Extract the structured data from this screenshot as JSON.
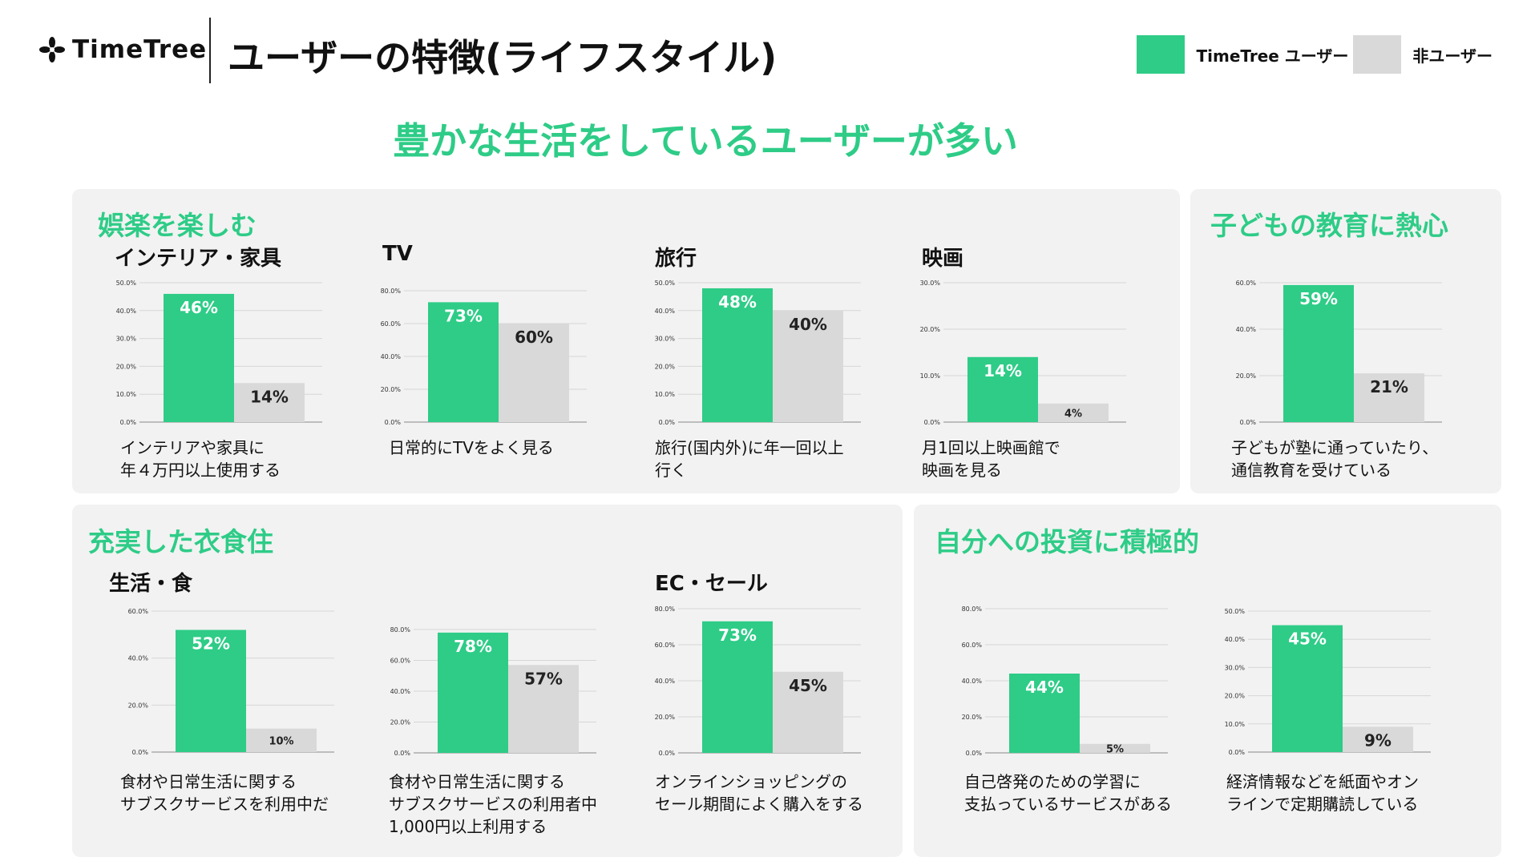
{
  "header": {
    "logo_text": "TimeTree",
    "title": "ユーザーの特徴(ライフスタイル)",
    "headline": "豊かな生活をしているユーザーが多い"
  },
  "legend": {
    "user_label": "TimeTree ユーザー",
    "nonuser_label": "非ユーザー"
  },
  "colors": {
    "accent": "#2ecc87",
    "user": "#2ecc87",
    "nonuser": "#d9d9d9"
  },
  "icons": {
    "logo": "timetree-logo-icon"
  },
  "panels": {
    "entertainment": {
      "title": "娯楽を楽しむ"
    },
    "education": {
      "title": "子どもの教育に熱心"
    },
    "living": {
      "title": "充実した衣食住"
    },
    "investment": {
      "title": "自分への投資に積極的"
    }
  },
  "chart_data": [
    {
      "type": "bar",
      "title": "インテリア・家具",
      "categories": [
        "TimeTree ユーザー",
        "非ユーザー"
      ],
      "values": [
        46,
        14
      ],
      "value_labels": [
        "46%",
        "14%"
      ],
      "ylim": [
        0,
        50
      ],
      "yticks": [
        "0.0%",
        "10.0%",
        "20.0%",
        "30.0%",
        "40.0%",
        "50.0%"
      ],
      "caption": [
        "インテリアや家具に",
        "年４万円以上使用する"
      ]
    },
    {
      "type": "bar",
      "title": "TV",
      "categories": [
        "TimeTree ユーザー",
        "非ユーザー"
      ],
      "values": [
        73,
        60
      ],
      "value_labels": [
        "73%",
        "60%"
      ],
      "ylim": [
        0,
        80
      ],
      "yticks": [
        "0.0%",
        "20.0%",
        "40.0%",
        "60.0%",
        "80.0%"
      ],
      "caption": [
        "日常的にTVをよく見る"
      ]
    },
    {
      "type": "bar",
      "title": "旅行",
      "categories": [
        "TimeTree ユーザー",
        "非ユーザー"
      ],
      "values": [
        48,
        40
      ],
      "value_labels": [
        "48%",
        "40%"
      ],
      "ylim": [
        0,
        50
      ],
      "yticks": [
        "0.0%",
        "10.0%",
        "20.0%",
        "30.0%",
        "40.0%",
        "50.0%"
      ],
      "caption": [
        "旅行(国内外)に年一回以上",
        "行く"
      ]
    },
    {
      "type": "bar",
      "title": "映画",
      "categories": [
        "TimeTree ユーザー",
        "非ユーザー"
      ],
      "values": [
        14,
        4
      ],
      "value_labels": [
        "14%",
        "4%"
      ],
      "ylim": [
        0,
        30
      ],
      "yticks": [
        "0.0%",
        "10.0%",
        "20.0%",
        "30.0%"
      ],
      "caption": [
        "月1回以上映画館で",
        "映画を見る"
      ]
    },
    {
      "type": "bar",
      "title": "",
      "categories": [
        "TimeTree ユーザー",
        "非ユーザー"
      ],
      "values": [
        59,
        21
      ],
      "value_labels": [
        "59%",
        "21%"
      ],
      "ylim": [
        0,
        60
      ],
      "yticks": [
        "0.0%",
        "20.0%",
        "40.0%",
        "60.0%"
      ],
      "caption": [
        "子どもが塾に通っていたり、",
        "通信教育を受けている"
      ]
    },
    {
      "type": "bar",
      "title": "生活・食",
      "categories": [
        "TimeTree ユーザー",
        "非ユーザー"
      ],
      "values": [
        52,
        10
      ],
      "value_labels": [
        "52%",
        "10%"
      ],
      "ylim": [
        0,
        60
      ],
      "yticks": [
        "0.0%",
        "20.0%",
        "40.0%",
        "60.0%"
      ],
      "caption": [
        "食材や日常生活に関する",
        "サブスクサービスを利用中だ"
      ]
    },
    {
      "type": "bar",
      "title": "",
      "categories": [
        "TimeTree ユーザー",
        "非ユーザー"
      ],
      "values": [
        78,
        57
      ],
      "value_labels": [
        "78%",
        "57%"
      ],
      "ylim": [
        0,
        80
      ],
      "yticks": [
        "0.0%",
        "20.0%",
        "40.0%",
        "60.0%",
        "80.0%"
      ],
      "caption": [
        "食材や日常生活に関する",
        "サブスクサービスの利用者中",
        "1,000円以上利用する"
      ]
    },
    {
      "type": "bar",
      "title": "EC・セール",
      "categories": [
        "TimeTree ユーザー",
        "非ユーザー"
      ],
      "values": [
        73,
        45
      ],
      "value_labels": [
        "73%",
        "45%"
      ],
      "ylim": [
        0,
        80
      ],
      "yticks": [
        "0.0%",
        "20.0%",
        "40.0%",
        "60.0%",
        "80.0%"
      ],
      "caption": [
        "オンラインショッピングの",
        "セール期間によく購入をする"
      ]
    },
    {
      "type": "bar",
      "title": "",
      "categories": [
        "TimeTree ユーザー",
        "非ユーザー"
      ],
      "values": [
        44,
        5
      ],
      "value_labels": [
        "44%",
        "5%"
      ],
      "ylim": [
        0,
        80
      ],
      "yticks": [
        "0.0%",
        "20.0%",
        "40.0%",
        "60.0%",
        "80.0%"
      ],
      "caption": [
        "自己啓発のための学習に",
        "支払っているサービスがある"
      ]
    },
    {
      "type": "bar",
      "title": "",
      "categories": [
        "TimeTree ユーザー",
        "非ユーザー"
      ],
      "values": [
        45,
        9
      ],
      "value_labels": [
        "45%",
        "9%"
      ],
      "ylim": [
        0,
        50
      ],
      "yticks": [
        "0.0%",
        "10.0%",
        "20.0%",
        "30.0%",
        "40.0%",
        "50.0%"
      ],
      "caption": [
        "経済情報などを紙面やオン",
        "ラインで定期購読している"
      ]
    }
  ]
}
